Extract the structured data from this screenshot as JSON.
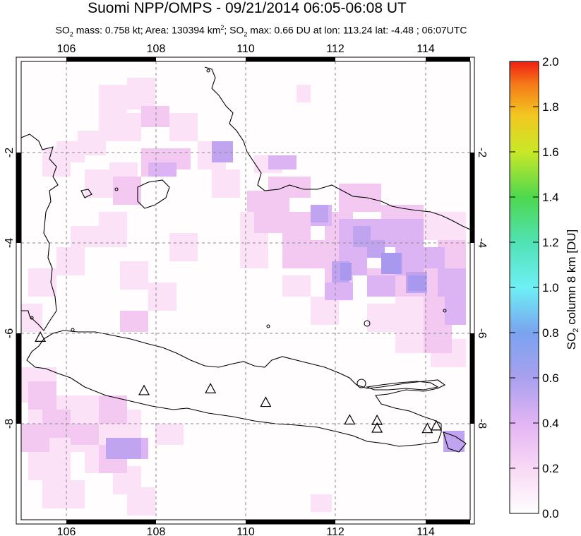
{
  "header": {
    "title": "Suomi NPP/OMPS - 09/21/2014 06:05-06:08 UT",
    "subtitle_parts": [
      "SO",
      "2",
      " mass: 0.758 kt; Area: 130394 km",
      "2",
      "; SO",
      "2",
      " max: 0.66 DU at lon: 113.24 lat: -4.48 ; 06:07UTC"
    ]
  },
  "map": {
    "lon_range": [
      105,
      115
    ],
    "lat_range": [
      -10,
      0
    ],
    "lon_ticks": [
      "106",
      "108",
      "110",
      "112",
      "114"
    ],
    "lat_ticks_left": [
      "-2",
      "-4",
      "-6",
      "-8"
    ],
    "lat_ticks_right": [
      "-2",
      "-4",
      "-6",
      "-8"
    ],
    "volcano_marker": "triangle-outline",
    "volcanoes": [
      {
        "lon": 105.42,
        "lat": -6.1
      },
      {
        "lon": 107.73,
        "lat": -7.28
      },
      {
        "lon": 109.21,
        "lat": -7.24
      },
      {
        "lon": 110.44,
        "lat": -7.54
      },
      {
        "lon": 112.31,
        "lat": -7.93
      },
      {
        "lon": 112.92,
        "lat": -7.94
      },
      {
        "lon": 112.92,
        "lat": -8.11
      },
      {
        "lon": 114.04,
        "lat": -8.12
      },
      {
        "lon": 114.24,
        "lat": -8.06
      }
    ]
  },
  "colorbar": {
    "label": "SO2 column 8 km [DU]",
    "label_parts": [
      "SO",
      "2",
      " column 8 km [DU]"
    ],
    "min": 0.0,
    "max": 2.0,
    "ticks": [
      "0.0",
      "0.2",
      "0.4",
      "0.6",
      "0.8",
      "1.0",
      "1.2",
      "1.4",
      "1.6",
      "1.8",
      "2.0"
    ]
  }
}
